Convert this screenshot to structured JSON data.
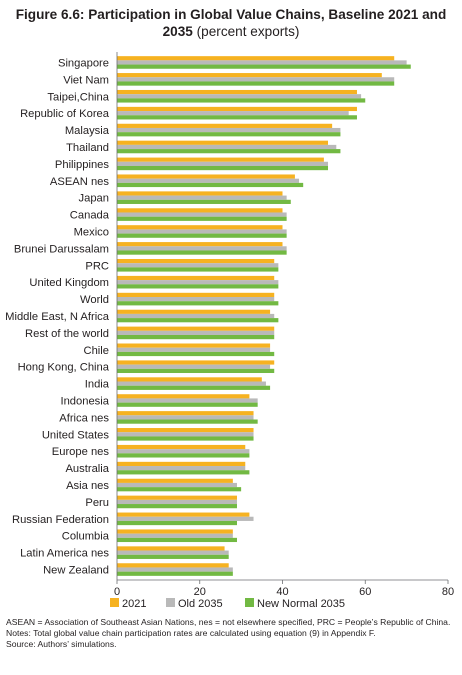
{
  "chart_data": {
    "type": "bar",
    "orientation": "horizontal",
    "title": "Figure 6.6: Participation in Global Value Chains, Baseline 2021 and 2035",
    "title_suffix": "(percent exports)",
    "categories": [
      "Singapore",
      "Viet Nam",
      "Taipei,China",
      "Republic of Korea",
      "Malaysia",
      "Thailand",
      "Philippines",
      "ASEAN nes",
      "Japan",
      "Canada",
      "Mexico",
      "Brunei Darussalam",
      "PRC",
      "United Kingdom",
      "World",
      "Middle East, N Africa",
      "Rest of the world",
      "Chile",
      "Hong Kong, China",
      "India",
      "Indonesia",
      "Africa nes",
      "United States",
      "Europe nes",
      "Australia",
      "Asia nes",
      "Peru",
      "Russian Federation",
      "Columbia",
      "Latin America nes",
      "New Zealand"
    ],
    "series": [
      {
        "name": "2021",
        "color": "#f6b221",
        "values": [
          67,
          64,
          58,
          58,
          52,
          51,
          50,
          43,
          40,
          40,
          40,
          40,
          38,
          38,
          38,
          37,
          38,
          37,
          38,
          35,
          32,
          33,
          33,
          31,
          31,
          28,
          29,
          32,
          28,
          26,
          27
        ]
      },
      {
        "name": "Old 2035",
        "color": "#b9b9b9",
        "values": [
          70,
          67,
          59,
          56,
          54,
          53,
          51,
          44,
          41,
          41,
          41,
          41,
          39,
          39,
          38,
          38,
          38,
          37,
          37,
          36,
          34,
          33,
          33,
          32,
          31,
          29,
          29,
          33,
          28,
          27,
          28
        ]
      },
      {
        "name": "New Normal 2035",
        "color": "#72b943",
        "values": [
          71,
          67,
          60,
          58,
          54,
          54,
          51,
          45,
          42,
          41,
          41,
          41,
          39,
          39,
          39,
          39,
          38,
          38,
          38,
          37,
          34,
          34,
          33,
          32,
          32,
          30,
          29,
          29,
          29,
          27,
          28
        ]
      }
    ],
    "xlim": [
      0,
      80
    ],
    "xticks": [
      0,
      20,
      40,
      60,
      80
    ],
    "legend_position": "bottom",
    "grid": false
  },
  "notes": [
    "ASEAN = Association of Southeast Asian Nations, nes = not elsewhere specified, PRC = People’s Republic of China.",
    "Notes: Total global value chain participation rates are calculated using equation (9) in Appendix F.",
    "Source: Authors’ simulations."
  ]
}
